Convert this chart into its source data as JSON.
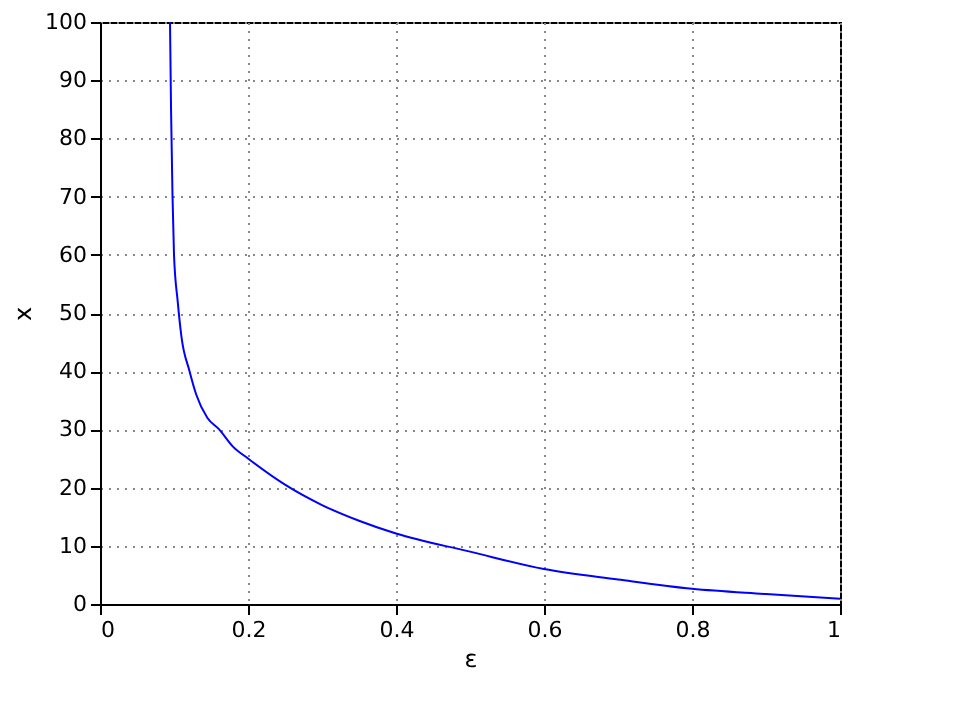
{
  "chart_data": {
    "type": "line",
    "xlabel": "ε",
    "ylabel": "x",
    "series": [
      {
        "color": "#0000ff",
        "x": [
          0.0946,
          0.096,
          0.098,
          0.1,
          0.105,
          0.11,
          0.121,
          0.13,
          0.145,
          0.161,
          0.18,
          0.2,
          0.25,
          0.3,
          0.35,
          0.4,
          0.5,
          0.6,
          0.7,
          0.8,
          0.9,
          1.0
        ],
        "values": [
          100,
          85,
          70,
          60,
          52,
          46,
          40,
          36,
          32,
          30,
          27,
          25,
          20.5,
          17,
          14.3,
          12.1,
          9.0,
          6.0,
          4.2,
          2.6,
          1.7,
          0.9
        ]
      }
    ],
    "xlim": [
      0,
      1
    ],
    "ylim": [
      0,
      100
    ],
    "xticks": [
      0,
      0.2,
      0.4,
      0.6,
      0.8,
      1
    ],
    "yticks": [
      0,
      10,
      20,
      30,
      40,
      50,
      60,
      70,
      80,
      90,
      100
    ],
    "grid": true,
    "line_style": "solid",
    "marker": "none",
    "legend": false
  }
}
